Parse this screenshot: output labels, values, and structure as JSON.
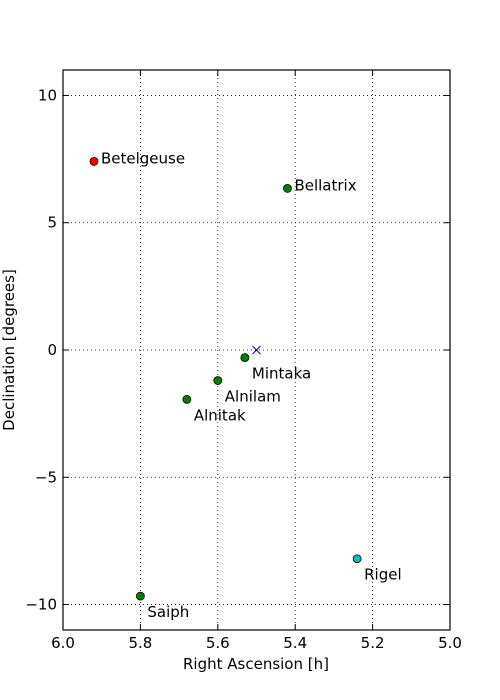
{
  "chart_data": {
    "type": "scatter",
    "title": "",
    "xlabel": "Right Ascension [h]",
    "ylabel": "Declination [degrees]",
    "xlim": [
      6.0,
      5.0
    ],
    "ylim": [
      -11,
      11
    ],
    "x_ticks": [
      6.0,
      5.8,
      5.6,
      5.4,
      5.2,
      5.0
    ],
    "x_tick_labels": [
      "6.0",
      "5.8",
      "5.6",
      "5.4",
      "5.2",
      "5.0"
    ],
    "y_ticks": [
      10,
      5,
      0,
      -5,
      -10
    ],
    "y_tick_labels": [
      "10",
      "5",
      "0",
      "−5",
      "−10"
    ],
    "grid": true,
    "points": [
      {
        "label": "Betelgeuse",
        "x": 5.92,
        "y": 7.41,
        "color": "#ff0000",
        "marker": "circle",
        "label_pos": "right"
      },
      {
        "label": "Bellatrix",
        "x": 5.42,
        "y": 6.35,
        "color": "#008000",
        "marker": "circle",
        "label_pos": "right"
      },
      {
        "label": "Mintaka",
        "x": 5.53,
        "y": -0.3,
        "color": "#008000",
        "marker": "circle",
        "label_pos": "below-right"
      },
      {
        "label": "Alnilam",
        "x": 5.6,
        "y": -1.2,
        "color": "#008000",
        "marker": "circle",
        "label_pos": "below-right"
      },
      {
        "label": "Alnitak",
        "x": 5.68,
        "y": -1.94,
        "color": "#008000",
        "marker": "circle",
        "label_pos": "below-right"
      },
      {
        "label": "Saiph",
        "x": 5.8,
        "y": -9.67,
        "color": "#008000",
        "marker": "circle",
        "label_pos": "below-right"
      },
      {
        "label": "Rigel",
        "x": 5.24,
        "y": -8.2,
        "color": "#00bfbf",
        "marker": "circle",
        "label_pos": "below-right"
      },
      {
        "label": "",
        "x": 5.5,
        "y": 0.0,
        "color": "#0000ff",
        "marker": "x",
        "label_pos": "none"
      }
    ]
  }
}
